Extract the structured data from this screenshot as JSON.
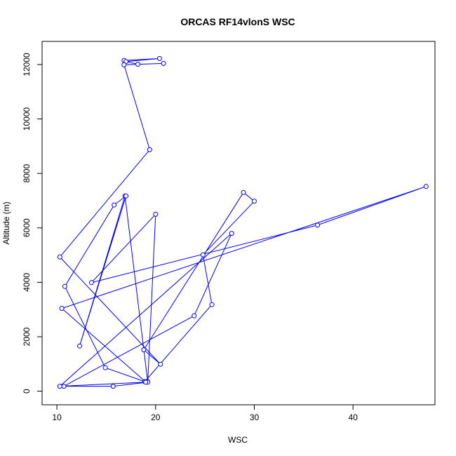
{
  "chart_data": {
    "type": "line",
    "title": "ORCAS RF14vlonS WSC",
    "xlabel": "WSC",
    "ylabel": "Altitude (m)",
    "xlim": [
      8.5,
      48.3
    ],
    "ylim": [
      -500,
      12850
    ],
    "xticks": [
      10,
      20,
      30,
      40
    ],
    "yticks": [
      0,
      2000,
      4000,
      6000,
      8000,
      10000,
      12000
    ],
    "grid": false,
    "markers": "open-circle",
    "colors": {
      "series": "#0000ff",
      "axes": "#000000",
      "background": "#ffffff"
    },
    "series": [
      {
        "x": [
          16.8,
          20.4,
          17.0,
          18.2,
          20.8,
          16.8,
          19.4,
          10.3,
          20.5,
          18.8,
          28.9,
          30.0,
          24.8,
          25.7,
          18.9,
          19.2,
          16.9,
          12.3,
          17.0,
          15.8,
          10.8,
          14.9,
          19.0,
          10.5,
          47.4,
          36.4,
          13.5,
          20.0,
          19.2,
          15.7,
          10.7,
          23.9,
          27.7,
          10.3,
          19.0
        ],
        "y": [
          12150,
          12220,
          12110,
          12010,
          12040,
          11990,
          8870,
          4930,
          990,
          1520,
          7300,
          6980,
          5010,
          3180,
          350,
          340,
          7170,
          1660,
          7170,
          6840,
          3850,
          860,
          340,
          3040,
          7520,
          6100,
          3990,
          6500,
          330,
          180,
          180,
          2770,
          5800,
          180,
          330
        ]
      }
    ]
  }
}
